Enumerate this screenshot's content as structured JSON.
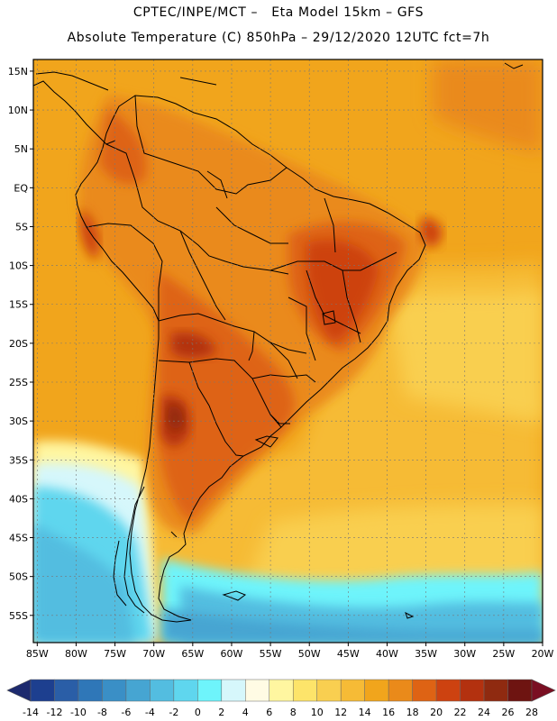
{
  "title": {
    "line1": "CPTEC/INPE/MCT –   Eta Model 15km – GFS",
    "line2": "Absolute Temperature (C) 850hPa – 29/12/2020 12UTC fct=7h"
  },
  "map": {
    "lat_labels": [
      "15N",
      "10N",
      "5N",
      "EQ",
      "5S",
      "10S",
      "15S",
      "20S",
      "25S",
      "30S",
      "35S",
      "40S",
      "45S",
      "50S",
      "55S"
    ],
    "lon_labels": [
      "85W",
      "80W",
      "75W",
      "70W",
      "65W",
      "60W",
      "55W",
      "50W",
      "45W",
      "40W",
      "35W",
      "30W",
      "25W",
      "20W"
    ],
    "lat_values": [
      15,
      10,
      5,
      0,
      -5,
      -10,
      -15,
      -20,
      -25,
      -30,
      -35,
      -40,
      -45,
      -50,
      -55
    ],
    "lon_values": [
      -85,
      -80,
      -75,
      -70,
      -65,
      -60,
      -55,
      -50,
      -45,
      -40,
      -35,
      -30,
      -25,
      -20
    ],
    "extent": {
      "lon_min": -85.5,
      "lon_max": -20,
      "lat_min": -58.5,
      "lat_max": 16.5
    }
  },
  "colorbar": {
    "labels": [
      "-14",
      "-12",
      "-10",
      "-8",
      "-6",
      "-4",
      "-2",
      "0",
      "2",
      "4",
      "6",
      "8",
      "10",
      "12",
      "14",
      "16",
      "18",
      "20",
      "22",
      "24",
      "26",
      "28"
    ],
    "colors": [
      "#1d3f8f",
      "#2a5ea7",
      "#2f77b8",
      "#3a8fc6",
      "#46a5d2",
      "#53bde0",
      "#5fd6ee",
      "#6ef4fb",
      "#d6f7fb",
      "#fffbe4",
      "#fff6a0",
      "#fde46a",
      "#f9cf50",
      "#f6bb36",
      "#f1a51c",
      "#ea8a1a",
      "#de6314",
      "#cd4210",
      "#b3310f",
      "#8f2a10",
      "#6e1411"
    ]
  }
}
